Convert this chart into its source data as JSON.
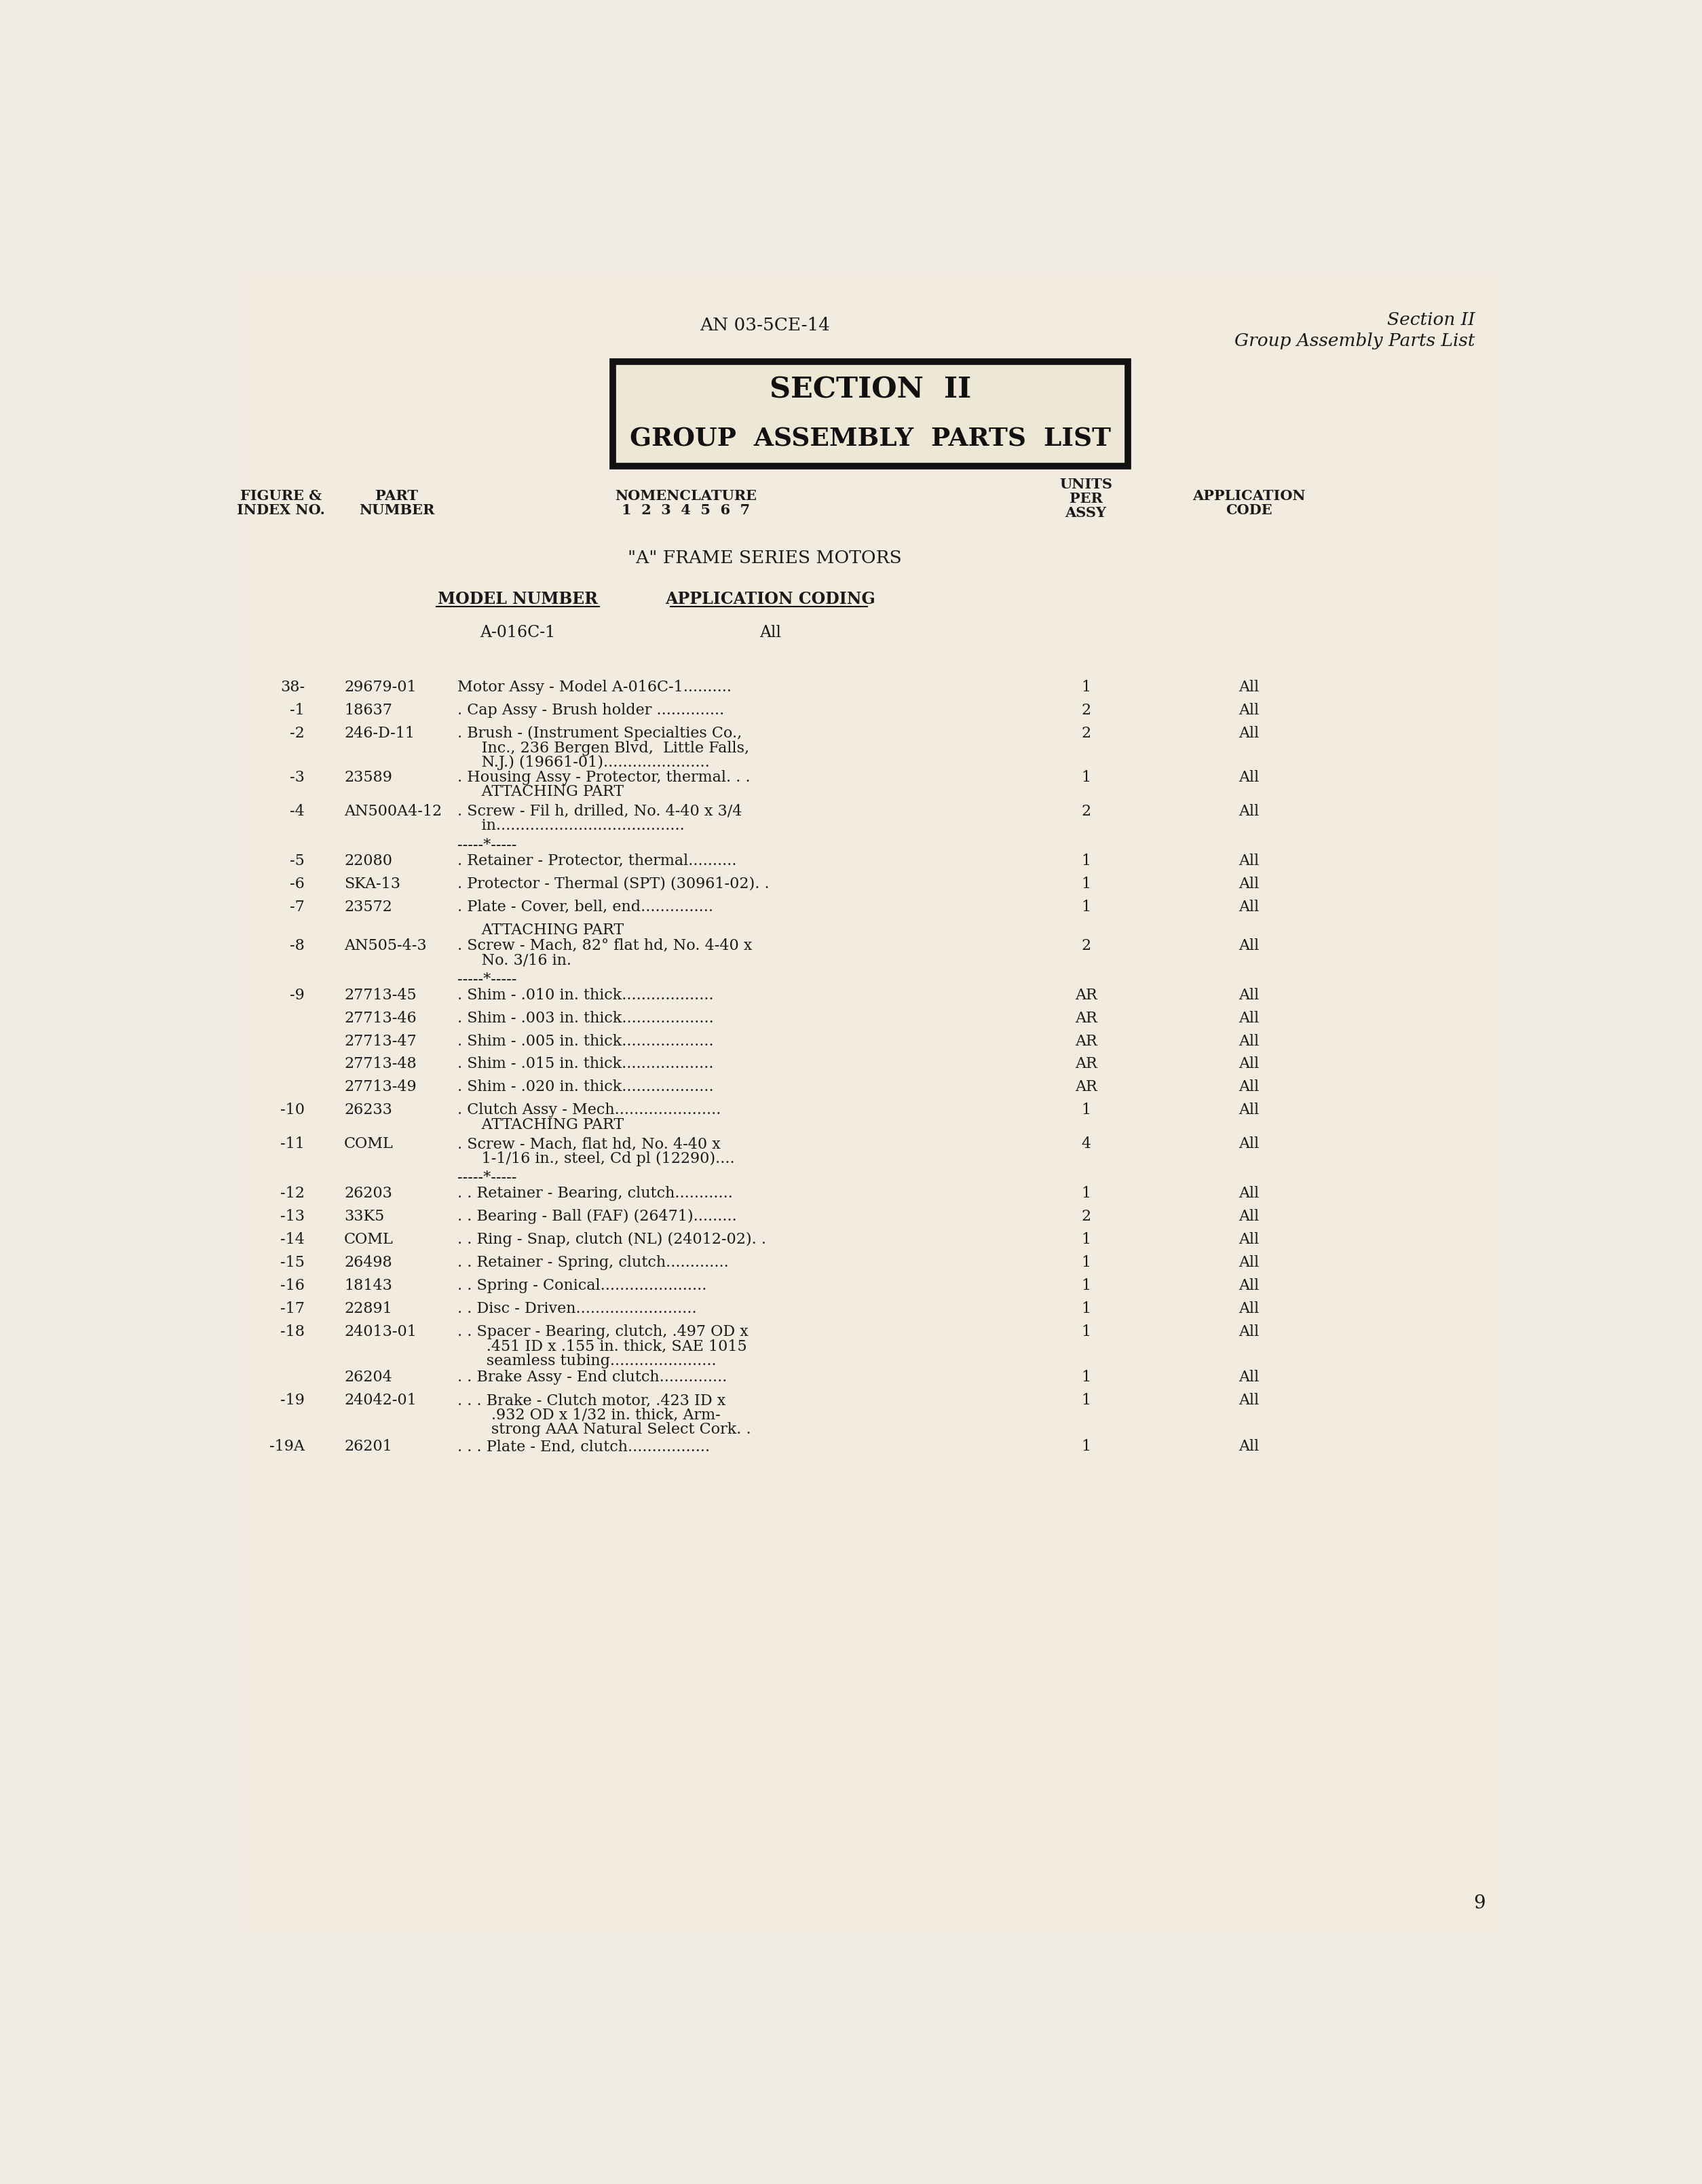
{
  "bg_color": "#f0ebe0",
  "page_color": "#f0ebe0",
  "header_left": "AN 03-5CE-14",
  "header_right_line1": "Section II",
  "header_right_line2": "Group Assembly Parts List",
  "section_title_line1": "SECTION  II",
  "section_title_line2": "GROUP  ASSEMBLY  PARTS  LIST",
  "series_title": "\"A\" FRAME SERIES MOTORS",
  "model_number_label": "MODEL NUMBER",
  "app_coding_label": "APPLICATION CODING",
  "model_number_value": "A-016C-1",
  "app_coding_value": "All",
  "rows": [
    {
      "fig": "38-",
      "part": "29679-01",
      "nom": "Motor Assy - Model A-016C-1..........",
      "units": "1",
      "app": "All",
      "lines": 1
    },
    {
      "fig": "-1",
      "part": "18637",
      "nom": ". Cap Assy - Brush holder ..............",
      "units": "2",
      "app": "All",
      "lines": 1
    },
    {
      "fig": "-2",
      "part": "246-D-11",
      "nom": ". Brush - (Instrument Specialties Co.,\n     Inc., 236 Bergen Blvd,  Little Falls,\n     N.J.) (19661-01)......................",
      "units": "2",
      "app": "All",
      "lines": 3
    },
    {
      "fig": "-3",
      "part": "23589",
      "nom": ". Housing Assy - Protector, thermal. . .\n     ATTACHING PART",
      "units": "1",
      "app": "All",
      "lines": 2
    },
    {
      "fig": "-4",
      "part": "AN500A4-12",
      "nom": ". Screw - Fil h, drilled, No. 4-40 x 3/4\n     in.......................................",
      "units": "2",
      "app": "All",
      "lines": 2
    },
    {
      "fig": "",
      "part": "",
      "nom": "-----*-----",
      "units": "",
      "app": "",
      "lines": 1
    },
    {
      "fig": "-5",
      "part": "22080",
      "nom": ". Retainer - Protector, thermal..........",
      "units": "1",
      "app": "All",
      "lines": 1
    },
    {
      "fig": "-6",
      "part": "SKA-13",
      "nom": ". Protector - Thermal (SPT) (30961-02). .",
      "units": "1",
      "app": "All",
      "lines": 1
    },
    {
      "fig": "-7",
      "part": "23572",
      "nom": ". Plate - Cover, bell, end...............",
      "units": "1",
      "app": "All",
      "lines": 1
    },
    {
      "fig": "",
      "part": "",
      "nom": "     ATTACHING PART",
      "units": "",
      "app": "",
      "lines": 1
    },
    {
      "fig": "-8",
      "part": "AN505-4-3",
      "nom": ". Screw - Mach, 82° flat hd, No. 4-40 x\n     No. 3/16 in.",
      "units": "2",
      "app": "All",
      "lines": 2
    },
    {
      "fig": "",
      "part": "",
      "nom": "-----*-----",
      "units": "",
      "app": "",
      "lines": 1
    },
    {
      "fig": "-9",
      "part": "27713-45",
      "nom": ". Shim - .010 in. thick...................",
      "units": "AR",
      "app": "All",
      "lines": 1
    },
    {
      "fig": "",
      "part": "27713-46",
      "nom": ". Shim - .003 in. thick...................",
      "units": "AR",
      "app": "All",
      "lines": 1
    },
    {
      "fig": "",
      "part": "27713-47",
      "nom": ". Shim - .005 in. thick...................",
      "units": "AR",
      "app": "All",
      "lines": 1
    },
    {
      "fig": "",
      "part": "27713-48",
      "nom": ". Shim - .015 in. thick...................",
      "units": "AR",
      "app": "All",
      "lines": 1
    },
    {
      "fig": "",
      "part": "27713-49",
      "nom": ". Shim - .020 in. thick...................",
      "units": "AR",
      "app": "All",
      "lines": 1
    },
    {
      "fig": "-10",
      "part": "26233",
      "nom": ". Clutch Assy - Mech......................\n     ATTACHING PART",
      "units": "1",
      "app": "All",
      "lines": 2
    },
    {
      "fig": "-11",
      "part": "COML",
      "nom": ". Screw - Mach, flat hd, No. 4-40 x\n     1-1/16 in., steel, Cd pl (12290)....",
      "units": "4",
      "app": "All",
      "lines": 2
    },
    {
      "fig": "",
      "part": "",
      "nom": "-----*-----",
      "units": "",
      "app": "",
      "lines": 1
    },
    {
      "fig": "-12",
      "part": "26203",
      "nom": ". . Retainer - Bearing, clutch............",
      "units": "1",
      "app": "All",
      "lines": 1
    },
    {
      "fig": "-13",
      "part": "33K5",
      "nom": ". . Bearing - Ball (FAF) (26471).........",
      "units": "2",
      "app": "All",
      "lines": 1
    },
    {
      "fig": "-14",
      "part": "COML",
      "nom": ". . Ring - Snap, clutch (NL) (24012-02). .",
      "units": "1",
      "app": "All",
      "lines": 1
    },
    {
      "fig": "-15",
      "part": "26498",
      "nom": ". . Retainer - Spring, clutch.............",
      "units": "1",
      "app": "All",
      "lines": 1
    },
    {
      "fig": "-16",
      "part": "18143",
      "nom": ". . Spring - Conical......................",
      "units": "1",
      "app": "All",
      "lines": 1
    },
    {
      "fig": "-17",
      "part": "22891",
      "nom": ". . Disc - Driven.........................",
      "units": "1",
      "app": "All",
      "lines": 1
    },
    {
      "fig": "-18",
      "part": "24013-01",
      "nom": ". . Spacer - Bearing, clutch, .497 OD x\n      .451 ID x .155 in. thick, SAE 1015\n      seamless tubing......................",
      "units": "1",
      "app": "All",
      "lines": 3
    },
    {
      "fig": "",
      "part": "26204",
      "nom": ". . Brake Assy - End clutch..............",
      "units": "1",
      "app": "All",
      "lines": 1
    },
    {
      "fig": "-19",
      "part": "24042-01",
      "nom": ". . . Brake - Clutch motor, .423 ID x\n       .932 OD x 1/32 in. thick, Arm-\n       strong AAA Natural Select Cork. .",
      "units": "1",
      "app": "All",
      "lines": 3
    },
    {
      "fig": "-19A",
      "part": "26201",
      "nom": ". . . Plate - End, clutch.................",
      "units": "1",
      "app": "All",
      "lines": 1
    }
  ],
  "page_number": "9"
}
